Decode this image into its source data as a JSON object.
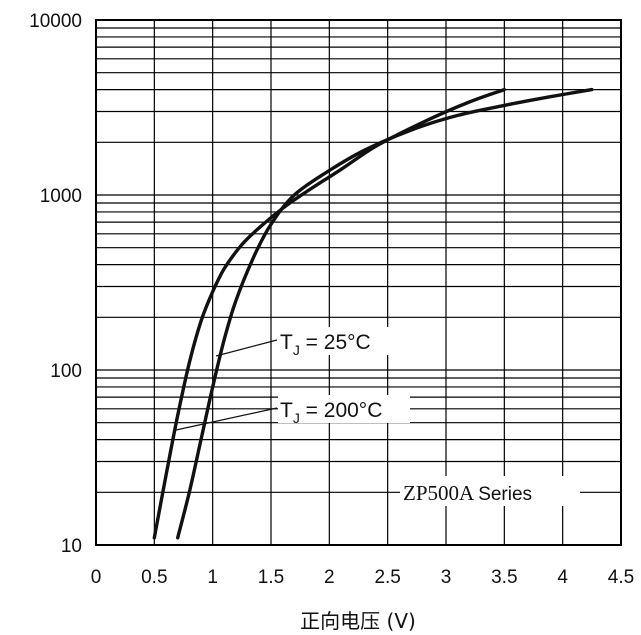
{
  "chart_data": {
    "type": "line",
    "title": "",
    "xlabel": "正向电压 (V)",
    "ylabel": "",
    "xlim": [
      0,
      4.5
    ],
    "ylim": [
      10,
      10000
    ],
    "yscale": "log",
    "grid": true,
    "x_ticks": [
      "0",
      "0.5",
      "1",
      "1.5",
      "2",
      "2.5",
      "3",
      "3.5",
      "4",
      "4.5"
    ],
    "y_ticks": [
      "10",
      "100",
      "1000",
      "10000"
    ],
    "series": [
      {
        "name": "Tj = 25°C",
        "x": [
          0.7,
          0.8,
          0.9,
          1.0,
          1.1,
          1.2,
          1.35,
          1.5,
          1.7,
          2.0,
          2.3,
          2.7,
          3.1,
          3.5,
          3.9,
          4.25
        ],
        "y": [
          11,
          20,
          40,
          80,
          150,
          250,
          440,
          680,
          1000,
          1380,
          1800,
          2350,
          2850,
          3250,
          3650,
          4000
        ]
      },
      {
        "name": "Tj = 200°C",
        "x": [
          0.5,
          0.6,
          0.7,
          0.8,
          0.9,
          1.0,
          1.1,
          1.25,
          1.4,
          1.6,
          1.8,
          2.1,
          2.4,
          2.8,
          3.2,
          3.5
        ],
        "y": [
          11,
          25,
          55,
          110,
          190,
          280,
          380,
          520,
          650,
          840,
          1040,
          1400,
          1900,
          2600,
          3400,
          4000
        ]
      }
    ],
    "annotations": {
      "tj25_prefix": "T",
      "tj25_sub": "J",
      "tj25_rest": " = 25°C",
      "tj200_prefix": "T",
      "tj200_sub": "J",
      "tj200_rest": " = 200°C",
      "series_label_main": "ZP500A",
      "series_label_sub": "Series"
    }
  }
}
